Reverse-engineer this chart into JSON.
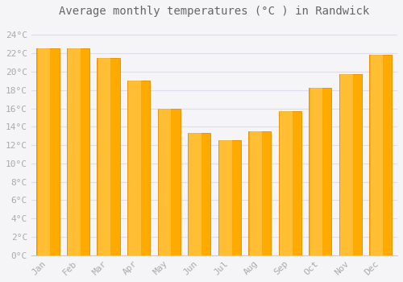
{
  "title": "Average monthly temperatures (°C ) in Randwick",
  "months": [
    "Jan",
    "Feb",
    "Mar",
    "Apr",
    "May",
    "Jun",
    "Jul",
    "Aug",
    "Sep",
    "Oct",
    "Nov",
    "Dec"
  ],
  "values": [
    22.5,
    22.5,
    21.5,
    19.0,
    16.0,
    13.3,
    12.5,
    13.5,
    15.7,
    18.2,
    19.7,
    21.8
  ],
  "bar_color_main": "#FFAA00",
  "bar_color_light": "#FFD060",
  "bar_color_edge": "#E8960A",
  "background_color": "#F5F5F8",
  "plot_bg_color": "#F5F5F8",
  "grid_color": "#DDDDEE",
  "ytick_labels": [
    "0°C",
    "2°C",
    "4°C",
    "6°C",
    "8°C",
    "10°C",
    "12°C",
    "14°C",
    "16°C",
    "18°C",
    "20°C",
    "22°C",
    "24°C"
  ],
  "ytick_values": [
    0,
    2,
    4,
    6,
    8,
    10,
    12,
    14,
    16,
    18,
    20,
    22,
    24
  ],
  "ylim": [
    0,
    25.5
  ],
  "title_fontsize": 10,
  "tick_fontsize": 8,
  "tick_color": "#AAAAAA",
  "title_color": "#666666",
  "font_family": "monospace",
  "bar_width": 0.75
}
